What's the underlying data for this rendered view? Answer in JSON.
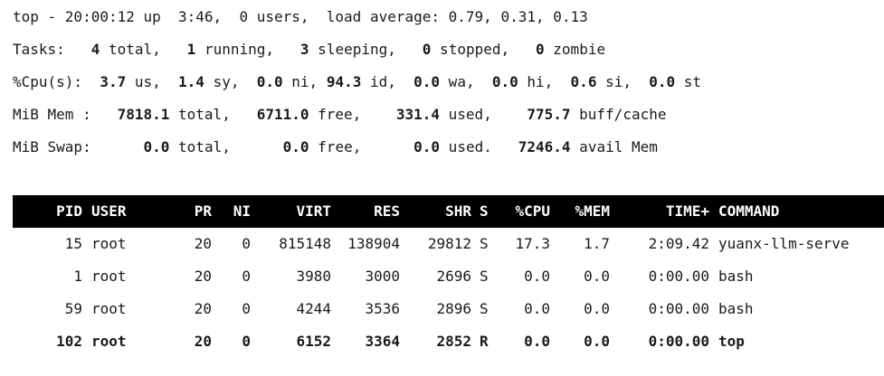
{
  "summary": {
    "line1": "top - 20:00:12 up  3:46,  0 users,  load average: 0.79, 0.31, 0.13",
    "tasks": {
      "prefix": "Tasks:   ",
      "total": "4",
      "total_label": " total,   ",
      "running": "1",
      "running_label": " running,   ",
      "sleeping": "3",
      "sleeping_label": " sleeping,   ",
      "stopped": "0",
      "stopped_label": " stopped,   ",
      "zombie": "0",
      "zombie_label": " zombie"
    },
    "cpu": {
      "prefix": "%Cpu(s):  ",
      "us": "3.7",
      "us_label": " us,  ",
      "sy": "1.4",
      "sy_label": " sy,  ",
      "ni": "0.0",
      "ni_label": " ni, ",
      "id": "94.3",
      "id_label": " id,  ",
      "wa": "0.0",
      "wa_label": " wa,  ",
      "hi": "0.0",
      "hi_label": " hi,  ",
      "si": "0.6",
      "si_label": " si,  ",
      "st": "0.0",
      "st_label": " st"
    },
    "mem": {
      "prefix": "MiB Mem :   ",
      "total": "7818.1",
      "total_label": " total,   ",
      "free": "6711.0",
      "free_label": " free,    ",
      "used": "331.4",
      "used_label": " used,    ",
      "buff": "775.7",
      "buff_label": " buff/cache"
    },
    "swap": {
      "prefix": "MiB Swap:      ",
      "total": "0.0",
      "total_label": " total,      ",
      "free": "0.0",
      "free_label": " free,      ",
      "used": "0.0",
      "used_label": " used.   ",
      "avail": "7246.4",
      "avail_label": " avail Mem"
    }
  },
  "columns": {
    "pid": "PID",
    "user": "USER",
    "pr": "PR",
    "ni": "NI",
    "virt": "VIRT",
    "res": "RES",
    "shr": "SHR",
    "s": "S",
    "cpu": "%CPU",
    "mem": "%MEM",
    "time": "TIME+",
    "command": "COMMAND"
  },
  "processes": [
    {
      "pid": "15",
      "user": "root",
      "pr": "20",
      "ni": "0",
      "virt": "815148",
      "res": "138904",
      "shr": "29812",
      "s": "S",
      "cpu": "17.3",
      "mem": "1.7",
      "time": "2:09.42",
      "command": "yuanx-llm-serve"
    },
    {
      "pid": "1",
      "user": "root",
      "pr": "20",
      "ni": "0",
      "virt": "3980",
      "res": "3000",
      "shr": "2696",
      "s": "S",
      "cpu": "0.0",
      "mem": "0.0",
      "time": "0:00.00",
      "command": "bash"
    },
    {
      "pid": "59",
      "user": "root",
      "pr": "20",
      "ni": "0",
      "virt": "4244",
      "res": "3536",
      "shr": "2896",
      "s": "S",
      "cpu": "0.0",
      "mem": "0.0",
      "time": "0:00.00",
      "command": "bash"
    },
    {
      "pid": "102",
      "user": "root",
      "pr": "20",
      "ni": "0",
      "virt": "6152",
      "res": "3364",
      "shr": "2852",
      "s": "R",
      "cpu": "0.0",
      "mem": "0.0",
      "time": "0:00.00",
      "command": "top"
    }
  ]
}
